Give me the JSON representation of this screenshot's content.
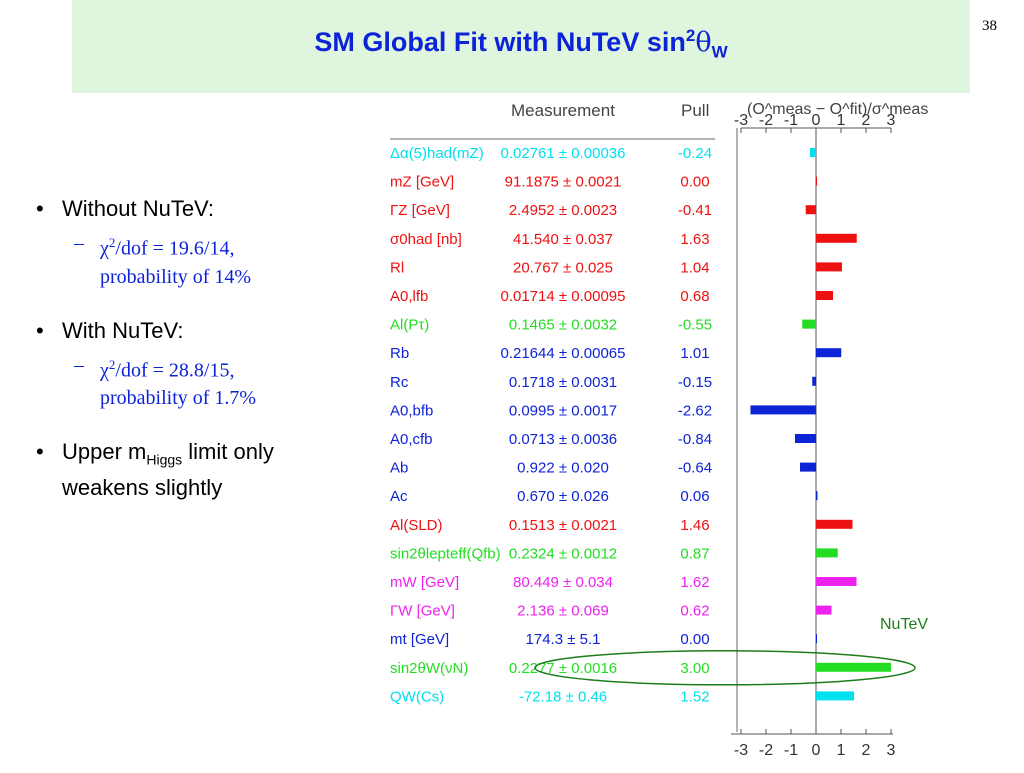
{
  "slide": {
    "title_main": "SM Global Fit with NuTeV sin",
    "title_sup": "2",
    "title_theta": "θ",
    "title_sub": "W",
    "page_number": "38"
  },
  "bullets": [
    {
      "text": "Without NuTeV:",
      "sub_chi": "χ",
      "sub_sup": "2",
      "sub_line1": "/dof = 19.6/14,",
      "sub_line2": "probability of 14%"
    },
    {
      "text": "With NuTeV:",
      "sub_chi": "χ",
      "sub_sup": "2",
      "sub_line1": "/dof = 28.8/15,",
      "sub_line2": "probability of 1.7%"
    },
    {
      "text_pre": "Upper m",
      "text_sub": "Higgs",
      "text_post": " limit only",
      "text_line2": "weakens slightly"
    }
  ],
  "chart_data": {
    "type": "bar",
    "headers": {
      "measurement": "Measurement",
      "pull": "Pull",
      "axis_title": "(O^meas − O^fit)/σ^meas"
    },
    "axis_ticks": [
      "-3",
      "-2",
      "-1",
      "0",
      "1",
      "2",
      "3"
    ],
    "xlim": [
      -3,
      3
    ],
    "annotation": "NuTeV",
    "annotation_color": "#1c7d1c",
    "highlight_row": 18,
    "rows": [
      {
        "label": "Δα(5)had(mZ)",
        "value": "0.02761 ± 0.00036",
        "pull": 0.24,
        "pull_text": "-0.24",
        "sign": -1,
        "color": "#00e0ee"
      },
      {
        "label": "mZ [GeV]",
        "value": "91.1875 ± 0.0021",
        "pull": 0.0,
        "pull_text": "0.00",
        "sign": 1,
        "color": "#ee1111"
      },
      {
        "label": "ΓZ [GeV]",
        "value": "2.4952 ± 0.0023",
        "pull": 0.41,
        "pull_text": "-0.41",
        "sign": -1,
        "color": "#ee1111"
      },
      {
        "label": "σ0had [nb]",
        "value": "41.540 ± 0.037",
        "pull": 1.63,
        "pull_text": "1.63",
        "sign": 1,
        "color": "#ee1111"
      },
      {
        "label": "Rl",
        "value": "20.767 ± 0.025",
        "pull": 1.04,
        "pull_text": "1.04",
        "sign": 1,
        "color": "#ee1111"
      },
      {
        "label": "A0,lfb",
        "value": "0.01714 ± 0.00095",
        "pull": 0.68,
        "pull_text": "0.68",
        "sign": 1,
        "color": "#ee1111"
      },
      {
        "label": "Al(Pτ)",
        "value": "0.1465 ± 0.0032",
        "pull": 0.55,
        "pull_text": "-0.55",
        "sign": -1,
        "color": "#22dd22"
      },
      {
        "label": "Rb",
        "value": "0.21644 ± 0.00065",
        "pull": 1.01,
        "pull_text": "1.01",
        "sign": 1,
        "color": "#0d23d6"
      },
      {
        "label": "Rc",
        "value": "0.1718 ± 0.0031",
        "pull": 0.15,
        "pull_text": "-0.15",
        "sign": -1,
        "color": "#0d23d6"
      },
      {
        "label": "A0,bfb",
        "value": "0.0995 ± 0.0017",
        "pull": 2.62,
        "pull_text": "-2.62",
        "sign": -1,
        "color": "#0d23d6"
      },
      {
        "label": "A0,cfb",
        "value": "0.0713 ± 0.0036",
        "pull": 0.84,
        "pull_text": "-0.84",
        "sign": -1,
        "color": "#0d23d6"
      },
      {
        "label": "Ab",
        "value": "0.922 ± 0.020",
        "pull": 0.64,
        "pull_text": "-0.64",
        "sign": -1,
        "color": "#0d23d6"
      },
      {
        "label": "Ac",
        "value": "0.670 ± 0.026",
        "pull": 0.06,
        "pull_text": "0.06",
        "sign": 1,
        "color": "#0d23d6"
      },
      {
        "label": "Al(SLD)",
        "value": "0.1513 ± 0.0021",
        "pull": 1.46,
        "pull_text": "1.46",
        "sign": 1,
        "color": "#ee1111"
      },
      {
        "label": "sin2θlepteff(Qfb)",
        "value": "0.2324 ± 0.0012",
        "pull": 0.87,
        "pull_text": "0.87",
        "sign": 1,
        "color": "#22dd22"
      },
      {
        "label": "mW [GeV]",
        "value": "80.449 ± 0.034",
        "pull": 1.62,
        "pull_text": "1.62",
        "sign": 1,
        "color": "#ee22ee"
      },
      {
        "label": "ΓW [GeV]",
        "value": "2.136 ± 0.069",
        "pull": 0.62,
        "pull_text": "0.62",
        "sign": 1,
        "color": "#ee22ee"
      },
      {
        "label": "mt [GeV]",
        "value": "174.3 ± 5.1",
        "pull": 0.0,
        "pull_text": "0.00",
        "sign": 1,
        "color": "#0d23d6"
      },
      {
        "label": "sin2θW(νN)",
        "value": "0.2277 ± 0.0016",
        "pull": 3.0,
        "pull_text": "3.00",
        "sign": 1,
        "color": "#22dd22"
      },
      {
        "label": "QW(Cs)",
        "value": "-72.18 ± 0.46",
        "pull": 1.52,
        "pull_text": "1.52",
        "sign": 1,
        "color": "#00e0ee"
      }
    ]
  }
}
